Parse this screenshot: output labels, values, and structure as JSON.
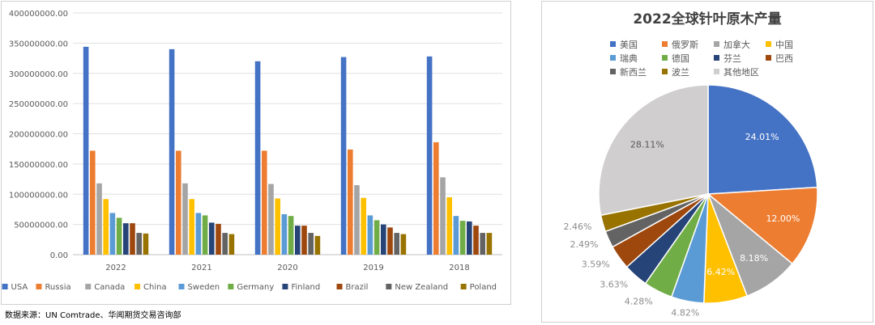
{
  "source_note": "数据来源：UN Comtrade、华闻期货交易咨询部",
  "colors": {
    "USA": "#4472C4",
    "Russia": "#ED7D31",
    "Canada": "#A5A5A5",
    "China": "#FFC000",
    "Sweden": "#5B9BD5",
    "Germany": "#70AD47",
    "Finland": "#264478",
    "Brazil": "#9E480E",
    "New Zealand": "#636363",
    "Poland": "#997300",
    "Other": "#D0CECE"
  },
  "chart_data": [
    {
      "type": "bar",
      "title": "",
      "xlabel": "",
      "ylabel": "",
      "ylim": [
        0,
        400000000
      ],
      "y_ticks": [
        "0.00",
        "50000000.00",
        "100000000.00",
        "150000000.00",
        "200000000.00",
        "250000000.00",
        "300000000.00",
        "350000000.00",
        "400000000.00"
      ],
      "grid": true,
      "legend_position": "bottom",
      "categories": [
        "2022",
        "2021",
        "2020",
        "2019",
        "2018"
      ],
      "series": [
        {
          "name": "USA",
          "values": [
            344000000,
            340000000,
            320000000,
            327000000,
            328000000
          ]
        },
        {
          "name": "Russia",
          "values": [
            172000000,
            172000000,
            172000000,
            174000000,
            186000000
          ]
        },
        {
          "name": "Canada",
          "values": [
            118000000,
            118000000,
            117000000,
            115000000,
            128000000
          ]
        },
        {
          "name": "China",
          "values": [
            92000000,
            92000000,
            93000000,
            94000000,
            95000000
          ]
        },
        {
          "name": "Sweden",
          "values": [
            69000000,
            69000000,
            67000000,
            65000000,
            64000000
          ]
        },
        {
          "name": "Germany",
          "values": [
            61000000,
            65000000,
            64000000,
            57000000,
            56000000
          ]
        },
        {
          "name": "Finland",
          "values": [
            52000000,
            53000000,
            48000000,
            50000000,
            55000000
          ]
        },
        {
          "name": "Brazil",
          "values": [
            52000000,
            51000000,
            48000000,
            45000000,
            48000000
          ]
        },
        {
          "name": "New Zealand",
          "values": [
            36000000,
            36000000,
            36000000,
            36000000,
            36000000
          ]
        },
        {
          "name": "Poland",
          "values": [
            35000000,
            34000000,
            31000000,
            34000000,
            36000000
          ]
        }
      ]
    },
    {
      "type": "pie",
      "title": "2022全球针叶原木产量",
      "legend_position": "top",
      "legend_rows": [
        [
          "美国",
          "俄罗斯",
          "加拿大",
          "中国"
        ],
        [
          "瑞典",
          "德国",
          "芬兰",
          "巴西"
        ],
        [
          "新西兰",
          "波兰",
          "其他地区"
        ]
      ],
      "slices": [
        {
          "name": "美国",
          "value": 24.01,
          "label": "24.01%",
          "color_key": "USA"
        },
        {
          "name": "俄罗斯",
          "value": 12.0,
          "label": "12.00%",
          "color_key": "Russia"
        },
        {
          "name": "加拿大",
          "value": 8.18,
          "label": "8.18%",
          "color_key": "Canada"
        },
        {
          "name": "中国",
          "value": 6.42,
          "label": "6.42%",
          "color_key": "China"
        },
        {
          "name": "瑞典",
          "value": 4.82,
          "label": "4.82%",
          "color_key": "Sweden"
        },
        {
          "name": "德国",
          "value": 4.28,
          "label": "4.28%",
          "color_key": "Germany"
        },
        {
          "name": "芬兰",
          "value": 3.63,
          "label": "3.63%",
          "color_key": "Finland"
        },
        {
          "name": "巴西",
          "value": 3.59,
          "label": "3.59%",
          "color_key": "Brazil"
        },
        {
          "name": "新西兰",
          "value": 2.49,
          "label": "2.49%",
          "color_key": "New Zealand"
        },
        {
          "name": "波兰",
          "value": 2.46,
          "label": "2.46%",
          "color_key": "Poland"
        },
        {
          "name": "其他地区",
          "value": 28.11,
          "label": "28.11%",
          "color_key": "Other"
        }
      ]
    }
  ]
}
